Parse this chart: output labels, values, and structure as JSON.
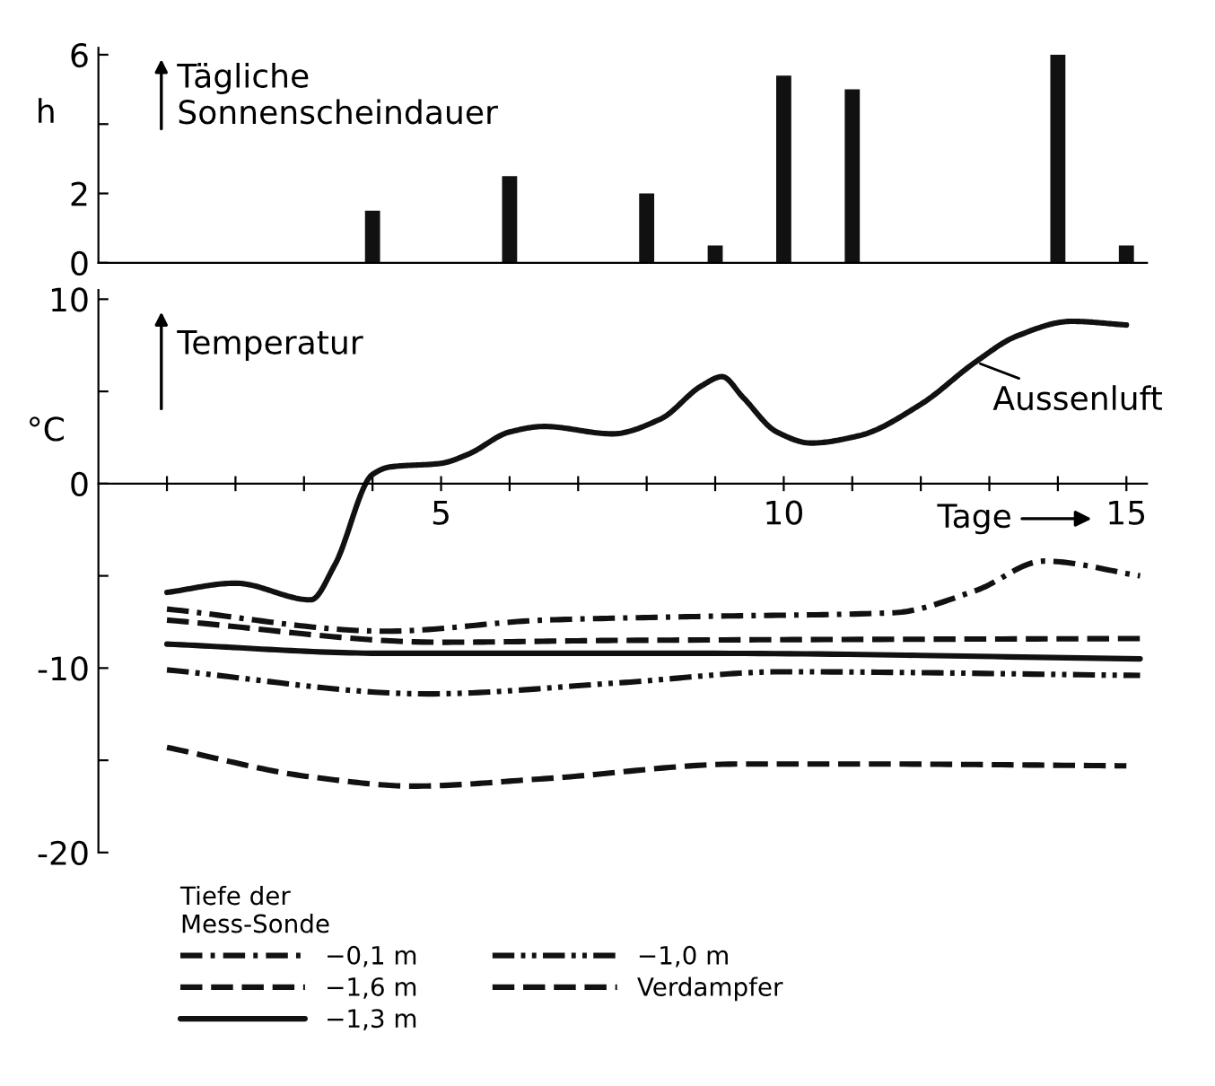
{
  "chart_data": [
    {
      "type": "bar",
      "title": "Tägliche\nSonnenscheindauer",
      "ylabel": "h",
      "x": [
        4,
        6,
        8,
        9,
        10,
        11,
        14,
        15
      ],
      "values": [
        1.5,
        2.5,
        2.0,
        0.5,
        5.4,
        5.0,
        6.0,
        0.5
      ],
      "color": "#111111",
      "xlim": [
        0,
        15.3
      ],
      "ylim": [
        0,
        6.2
      ],
      "yticks": [
        0,
        2,
        {
          "value": 4,
          "label": null
        },
        6
      ],
      "tick_labels": "y",
      "grid": false,
      "legend": false
    },
    {
      "type": "line",
      "title": "Temperatur",
      "ylabel": "°C",
      "xlabel": "Tage",
      "legend_title": "Tiefe der\nMess-Sonde",
      "xlim": [
        0,
        15.3
      ],
      "ylim": [
        -20,
        10.5
      ],
      "xticks": [
        {
          "value": 1,
          "label": null
        },
        {
          "value": 2,
          "label": null
        },
        {
          "value": 3,
          "label": null
        },
        {
          "value": 4,
          "label": null
        },
        5,
        {
          "value": 6,
          "label": null
        },
        {
          "value": 7,
          "label": null
        },
        {
          "value": 8,
          "label": null
        },
        {
          "value": 9,
          "label": null
        },
        10,
        {
          "value": 11,
          "label": null
        },
        {
          "value": 12,
          "label": null
        },
        {
          "value": 13,
          "label": null
        },
        {
          "value": 14,
          "label": null
        },
        15
      ],
      "yticks": [
        10,
        {
          "value": 5,
          "label": null
        },
        0,
        {
          "value": -5,
          "label": null
        },
        -10,
        {
          "value": -15,
          "label": null
        },
        -20
      ],
      "grid": false,
      "legend": "bottom left",
      "marker": "none",
      "annotations": [
        {
          "text": "Aussenluft",
          "x": 12.8,
          "y": 6.6
        }
      ],
      "series": [
        {
          "color": "#111111",
          "line_style": "solid",
          "x": [
            1.0,
            2.0,
            3.1,
            3.45,
            4.0,
            4.25,
            5.0,
            5.4,
            6.0,
            6.5,
            7.5,
            8.2,
            8.8,
            9.1,
            9.4,
            9.9,
            10.4,
            11.1,
            12.0,
            12.8,
            13.4,
            14.2,
            15.0
          ],
          "values": [
            -5.9,
            -5.4,
            -6.3,
            -4.4,
            0.5,
            0.9,
            1.1,
            1.6,
            2.8,
            3.1,
            2.7,
            3.5,
            5.3,
            5.8,
            4.7,
            2.8,
            2.2,
            2.6,
            4.3,
            6.6,
            8.0,
            8.8,
            8.6
          ]
        },
        {
          "name": "−0,1 m",
          "color": "#111111",
          "line_style": "dashdot",
          "x": [
            1.0,
            4.2,
            6.5,
            8.8,
            11.6,
            12.8,
            13.8,
            15.2
          ],
          "values": [
            -6.8,
            -8.0,
            -7.4,
            -7.2,
            -7.0,
            -5.8,
            -4.2,
            -5.0
          ]
        },
        {
          "name": "−1,6 m",
          "color": "#111111",
          "line_style": "dashed",
          "x": [
            1.0,
            5.0,
            7.6,
            15.2
          ],
          "values": [
            -7.4,
            -8.6,
            -8.5,
            -8.4
          ]
        },
        {
          "name": "−1,3 m",
          "color": "#111111",
          "line_style": "solid",
          "x": [
            1.0,
            4.2,
            8.8,
            15.2
          ],
          "values": [
            -8.7,
            -9.2,
            -9.2,
            -9.5
          ]
        },
        {
          "name": "−1,0 m",
          "color": "#111111",
          "line_style": "dashdotdot",
          "x": [
            1.0,
            4.8,
            7.6,
            10.0,
            15.2
          ],
          "values": [
            -10.1,
            -11.4,
            -10.8,
            -10.2,
            -10.4
          ]
        },
        {
          "name": "Verdampfer",
          "color": "#111111",
          "line_style": "dashed",
          "x": [
            1.0,
            3.1,
            4.6,
            6.5,
            9.4,
            11.1,
            15.0
          ],
          "values": [
            -14.3,
            -15.9,
            -16.4,
            -16.0,
            -15.2,
            -15.2,
            -15.3
          ]
        }
      ]
    }
  ]
}
